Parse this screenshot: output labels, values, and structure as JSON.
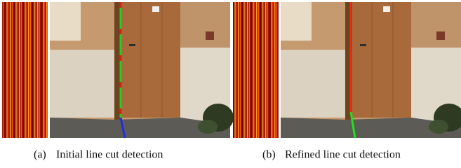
{
  "figure": {
    "subfigures": [
      {
        "label": "(a)",
        "caption": "Initial line cut detection"
      },
      {
        "label": "(b)",
        "caption": "Refined line cut detection"
      }
    ]
  }
}
